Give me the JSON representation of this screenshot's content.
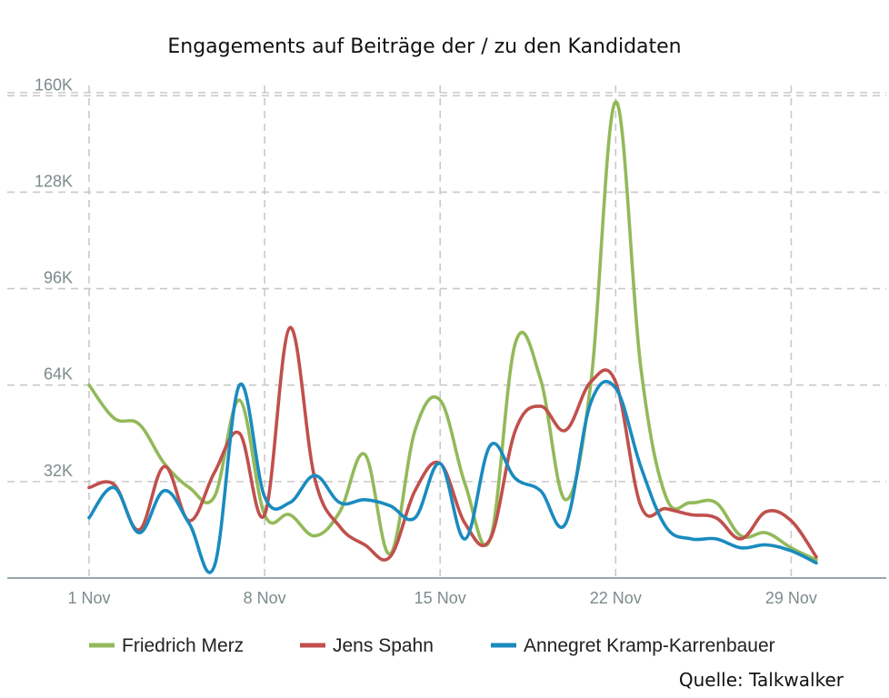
{
  "chart_data": {
    "type": "line",
    "title": "Engagements auf Beiträge der / zu den Kandidaten",
    "source": "Quelle: Talkwalker",
    "xlabel": "",
    "ylabel": "",
    "x": [
      "1 Nov",
      "2 Nov",
      "3 Nov",
      "4 Nov",
      "5 Nov",
      "6 Nov",
      "7 Nov",
      "8 Nov",
      "9 Nov",
      "10 Nov",
      "11 Nov",
      "12 Nov",
      "13 Nov",
      "14 Nov",
      "15 Nov",
      "16 Nov",
      "17 Nov",
      "18 Nov",
      "19 Nov",
      "20 Nov",
      "21 Nov",
      "22 Nov",
      "23 Nov",
      "24 Nov",
      "25 Nov",
      "26 Nov",
      "27 Nov",
      "28 Nov",
      "29 Nov",
      "30 Nov"
    ],
    "x_ticks": [
      "1 Nov",
      "8 Nov",
      "15 Nov",
      "22 Nov",
      "29 Nov"
    ],
    "y_ticks": [
      "32K",
      "64K",
      "96K",
      "128K",
      "160K"
    ],
    "y_tick_values": [
      32000,
      64000,
      96000,
      128000,
      160000
    ],
    "ylim": [
      0,
      161000
    ],
    "grid": true,
    "legend_position": "bottom",
    "series": [
      {
        "name": "Friedrich Merz",
        "color": "#93b95a",
        "values": [
          64000,
          53000,
          51000,
          38000,
          30000,
          27000,
          59000,
          21000,
          21000,
          14000,
          22000,
          41000,
          8000,
          49000,
          59000,
          31000,
          13000,
          78000,
          66000,
          26000,
          64000,
          158000,
          70000,
          27000,
          25000,
          25000,
          14000,
          15000,
          10000,
          6000
        ]
      },
      {
        "name": "Jens Spahn",
        "color": "#c0504d",
        "values": [
          30000,
          31000,
          16000,
          37000,
          19000,
          35000,
          48000,
          21000,
          83000,
          33000,
          17000,
          11000,
          7000,
          29000,
          38000,
          18000,
          13000,
          49000,
          57000,
          49000,
          65000,
          65000,
          24000,
          23000,
          21000,
          20000,
          13000,
          22000,
          19000,
          7000
        ]
      },
      {
        "name": "Annegret Kramp-Karrenbauer",
        "color": "#1a8bbf",
        "values": [
          20000,
          30000,
          15000,
          29000,
          18000,
          4000,
          64000,
          27000,
          25000,
          34000,
          25000,
          26000,
          24000,
          20000,
          38000,
          13000,
          44000,
          33000,
          29000,
          18000,
          58000,
          63000,
          37000,
          17000,
          13000,
          13000,
          10000,
          11000,
          9000,
          5000
        ]
      }
    ]
  }
}
